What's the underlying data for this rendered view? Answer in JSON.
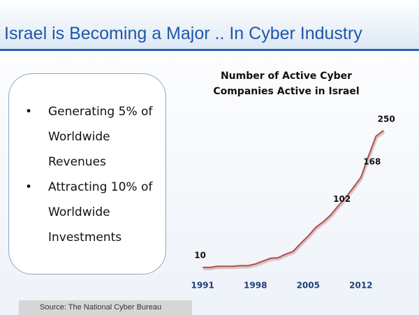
{
  "slide": {
    "title": "Israel is Becoming a Major .. In Cyber Industry",
    "bullets": [
      [
        "Generating 5% of",
        "Worldwide",
        "Revenues"
      ],
      [
        "Attracting 10% of",
        "Worldwide",
        "Investments"
      ]
    ],
    "source": "Source: The National Cyber Bureau"
  },
  "chart_data": {
    "type": "line",
    "title": "Number of Active Cyber Companies Active in Israel",
    "x": [
      1991,
      1992,
      1993,
      1994,
      1995,
      1996,
      1997,
      1998,
      1999,
      2000,
      2001,
      2002,
      2003,
      2004,
      2005,
      2006,
      2007,
      2008,
      2009,
      2010,
      2011,
      2012,
      2013,
      2014,
      2015
    ],
    "values": [
      10,
      10,
      12,
      12,
      12,
      13,
      13,
      16,
      21,
      26,
      27,
      33,
      38,
      52,
      65,
      80,
      90,
      102,
      118,
      133,
      150,
      168,
      205,
      240,
      250
    ],
    "value_labels": [
      10,
      null,
      null,
      null,
      null,
      null,
      null,
      null,
      null,
      null,
      null,
      null,
      null,
      null,
      null,
      null,
      null,
      102,
      null,
      null,
      null,
      168,
      null,
      null,
      250
    ],
    "color": "#b0504c",
    "xlim": [
      1989.5,
      2016
    ],
    "xticks": [
      1991,
      1998,
      2005,
      2012
    ],
    "ylim": [
      0,
      270
    ]
  }
}
